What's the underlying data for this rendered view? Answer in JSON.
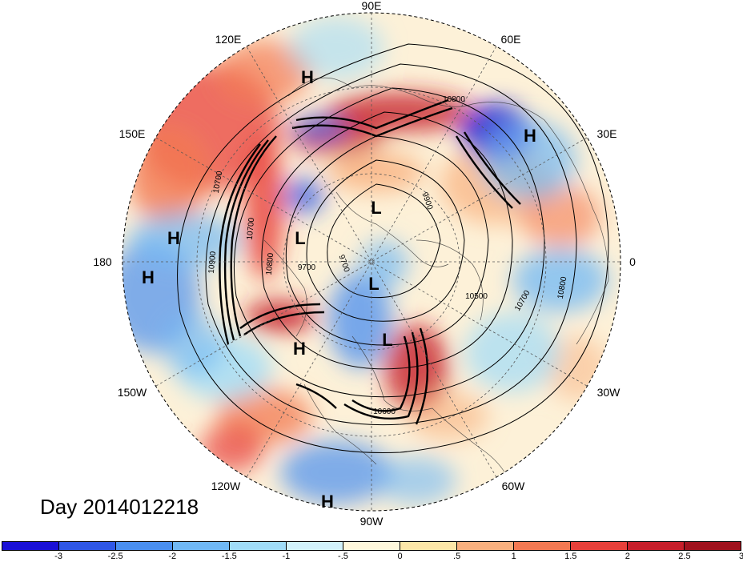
{
  "map": {
    "projection": "north-polar-stereographic",
    "lon_labels": {
      "e90": "90E",
      "e60": "60E",
      "e30": "30E",
      "zero": "0",
      "w30": "30W",
      "w60": "60W",
      "w90": "90W",
      "w120": "120W",
      "w150": "150W",
      "dateline": "180",
      "e150": "150E",
      "e120": "120E"
    },
    "centers": [
      {
        "label": "H",
        "near": "east Siberia"
      },
      {
        "label": "H",
        "near": "west Siberia"
      },
      {
        "label": "H",
        "near": "north Pacific"
      },
      {
        "label": "H",
        "near": "dateline"
      },
      {
        "label": "H",
        "near": "Alaska"
      },
      {
        "label": "H",
        "near": "eastern Pacific"
      },
      {
        "label": "L",
        "near": "Arctic"
      },
      {
        "label": "L",
        "near": "Beaufort"
      },
      {
        "label": "L",
        "near": "Canada"
      },
      {
        "label": "L",
        "near": "Hudson Bay"
      }
    ],
    "contour_labels": [
      "10800",
      "9900",
      "9700",
      "9700",
      "10900",
      "10700",
      "10800",
      "10500",
      "10700",
      "10800",
      "10600",
      "10700"
    ]
  },
  "day_label": "Day 2014012218",
  "colorbar": {
    "colors": [
      "#1a10d6",
      "#2f57e6",
      "#4a8ff0",
      "#70b8f5",
      "#a0dcf8",
      "#d2f2fb",
      "#fff8dc",
      "#fde7a8",
      "#f9b07e",
      "#f37952",
      "#e8403a",
      "#c71e2a",
      "#a0111d"
    ],
    "ticks": [
      "-3",
      "-2.5",
      "-2",
      "-1.5",
      "-1",
      "-.5",
      "0",
      ".5",
      "1",
      "1.5",
      "2",
      "2.5",
      "3"
    ]
  }
}
